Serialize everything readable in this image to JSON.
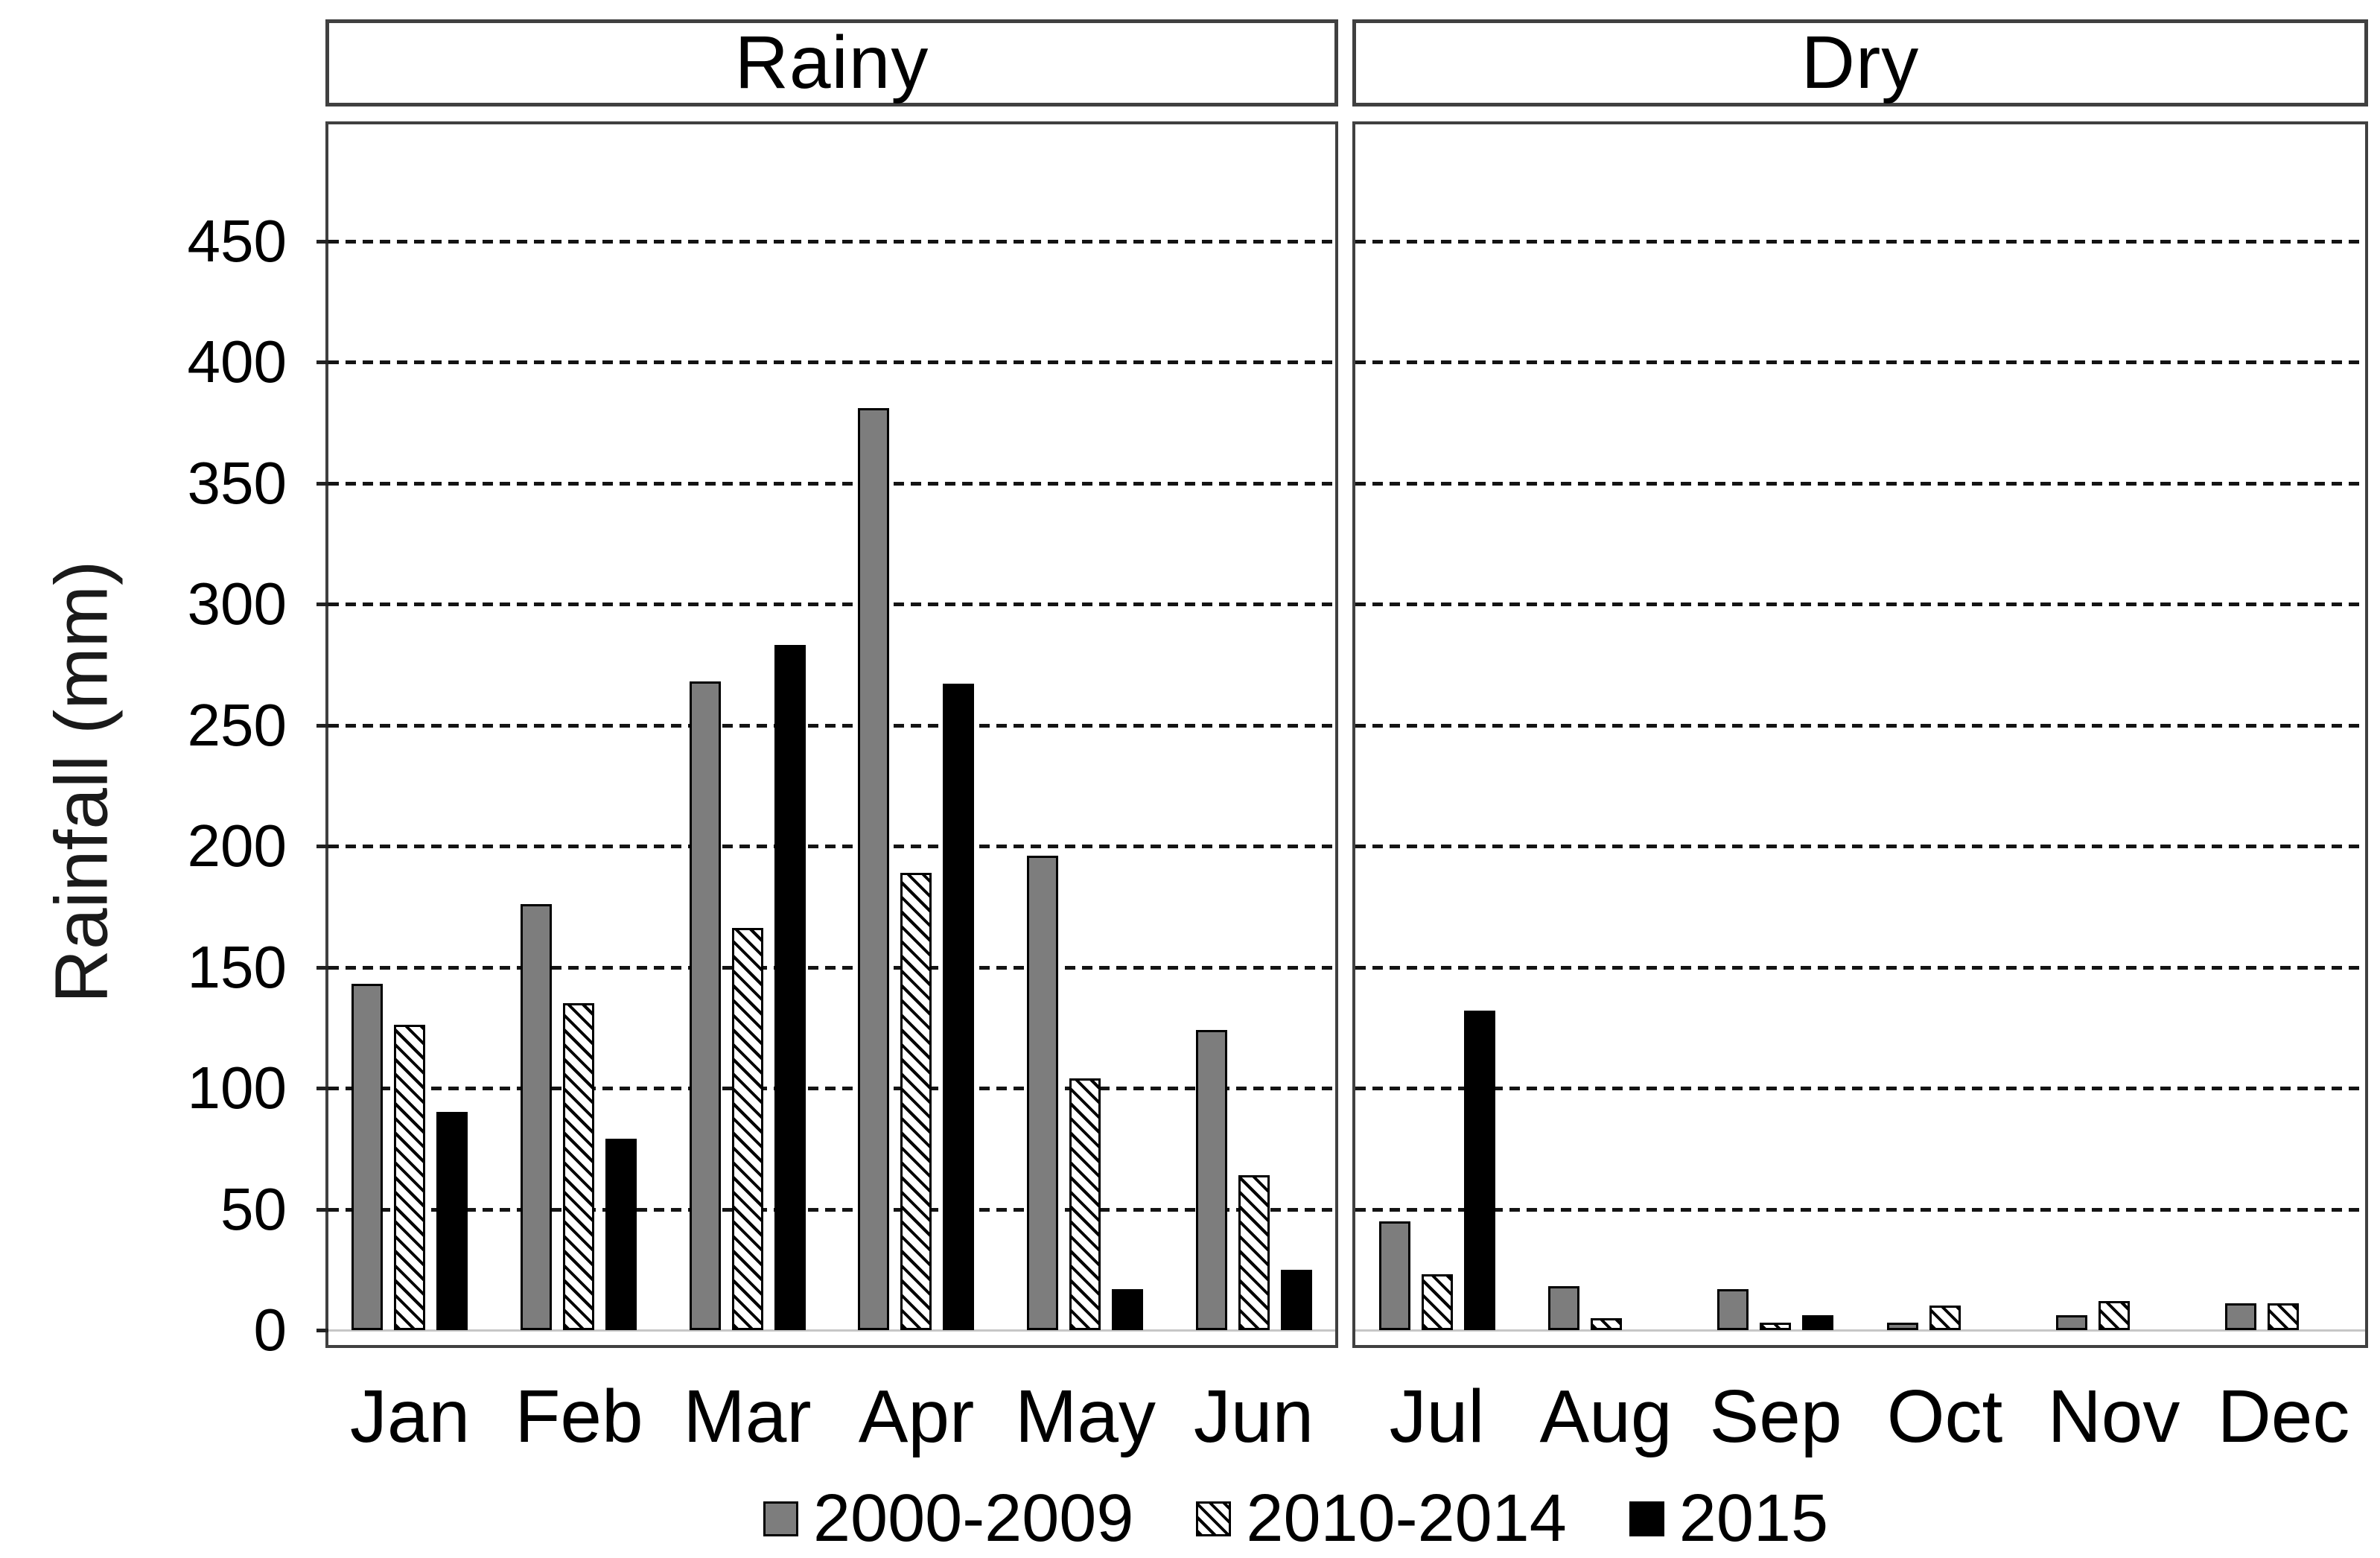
{
  "figure": {
    "season_headers": [
      {
        "label": "Rainy"
      },
      {
        "label": "Dry"
      }
    ],
    "ylabel": "Rainfall (mm)"
  },
  "chart_data": {
    "type": "bar",
    "title": "",
    "xlabel": "",
    "ylabel": "Rainfall (mm)",
    "categories": [
      "Jan",
      "Feb",
      "Mar",
      "Apr",
      "May",
      "Jun",
      "Jul",
      "Aug",
      "Sep",
      "Oct",
      "Nov",
      "Dec"
    ],
    "panels": [
      {
        "title": "Rainy",
        "categories": [
          "Jan",
          "Feb",
          "Mar",
          "Apr",
          "May",
          "Jun"
        ]
      },
      {
        "title": "Dry",
        "categories": [
          "Jul",
          "Aug",
          "Sep",
          "Oct",
          "Nov",
          "Dec"
        ]
      }
    ],
    "series": [
      {
        "name": "2000-2009",
        "style": "solid-gray",
        "values": [
          143,
          176,
          268,
          381,
          196,
          124,
          45,
          18,
          17,
          3,
          6,
          11
        ]
      },
      {
        "name": "2010-2014",
        "style": "hatched",
        "values": [
          126,
          135,
          166,
          189,
          104,
          64,
          23,
          5,
          3,
          10,
          12,
          11
        ]
      },
      {
        "name": "2015",
        "style": "solid-black",
        "values": [
          90,
          79,
          283,
          267,
          17,
          25,
          132,
          0,
          6,
          0,
          0,
          0
        ]
      }
    ],
    "yticks": [
      0,
      50,
      100,
      150,
      200,
      250,
      300,
      350,
      400,
      450
    ],
    "ylim": [
      0,
      485
    ],
    "grid": "horizontal-dashed",
    "legend_position": "bottom"
  },
  "colors": {
    "bar_gray": "#7d7d7d",
    "bar_black": "#000000",
    "hatch_foreground": "#000000",
    "hatch_background": "#ffffff",
    "panel_border": "#404040",
    "gridline": "#141414",
    "baseline": "#c6c6c6",
    "background": "#ffffff",
    "text": "#000000"
  }
}
